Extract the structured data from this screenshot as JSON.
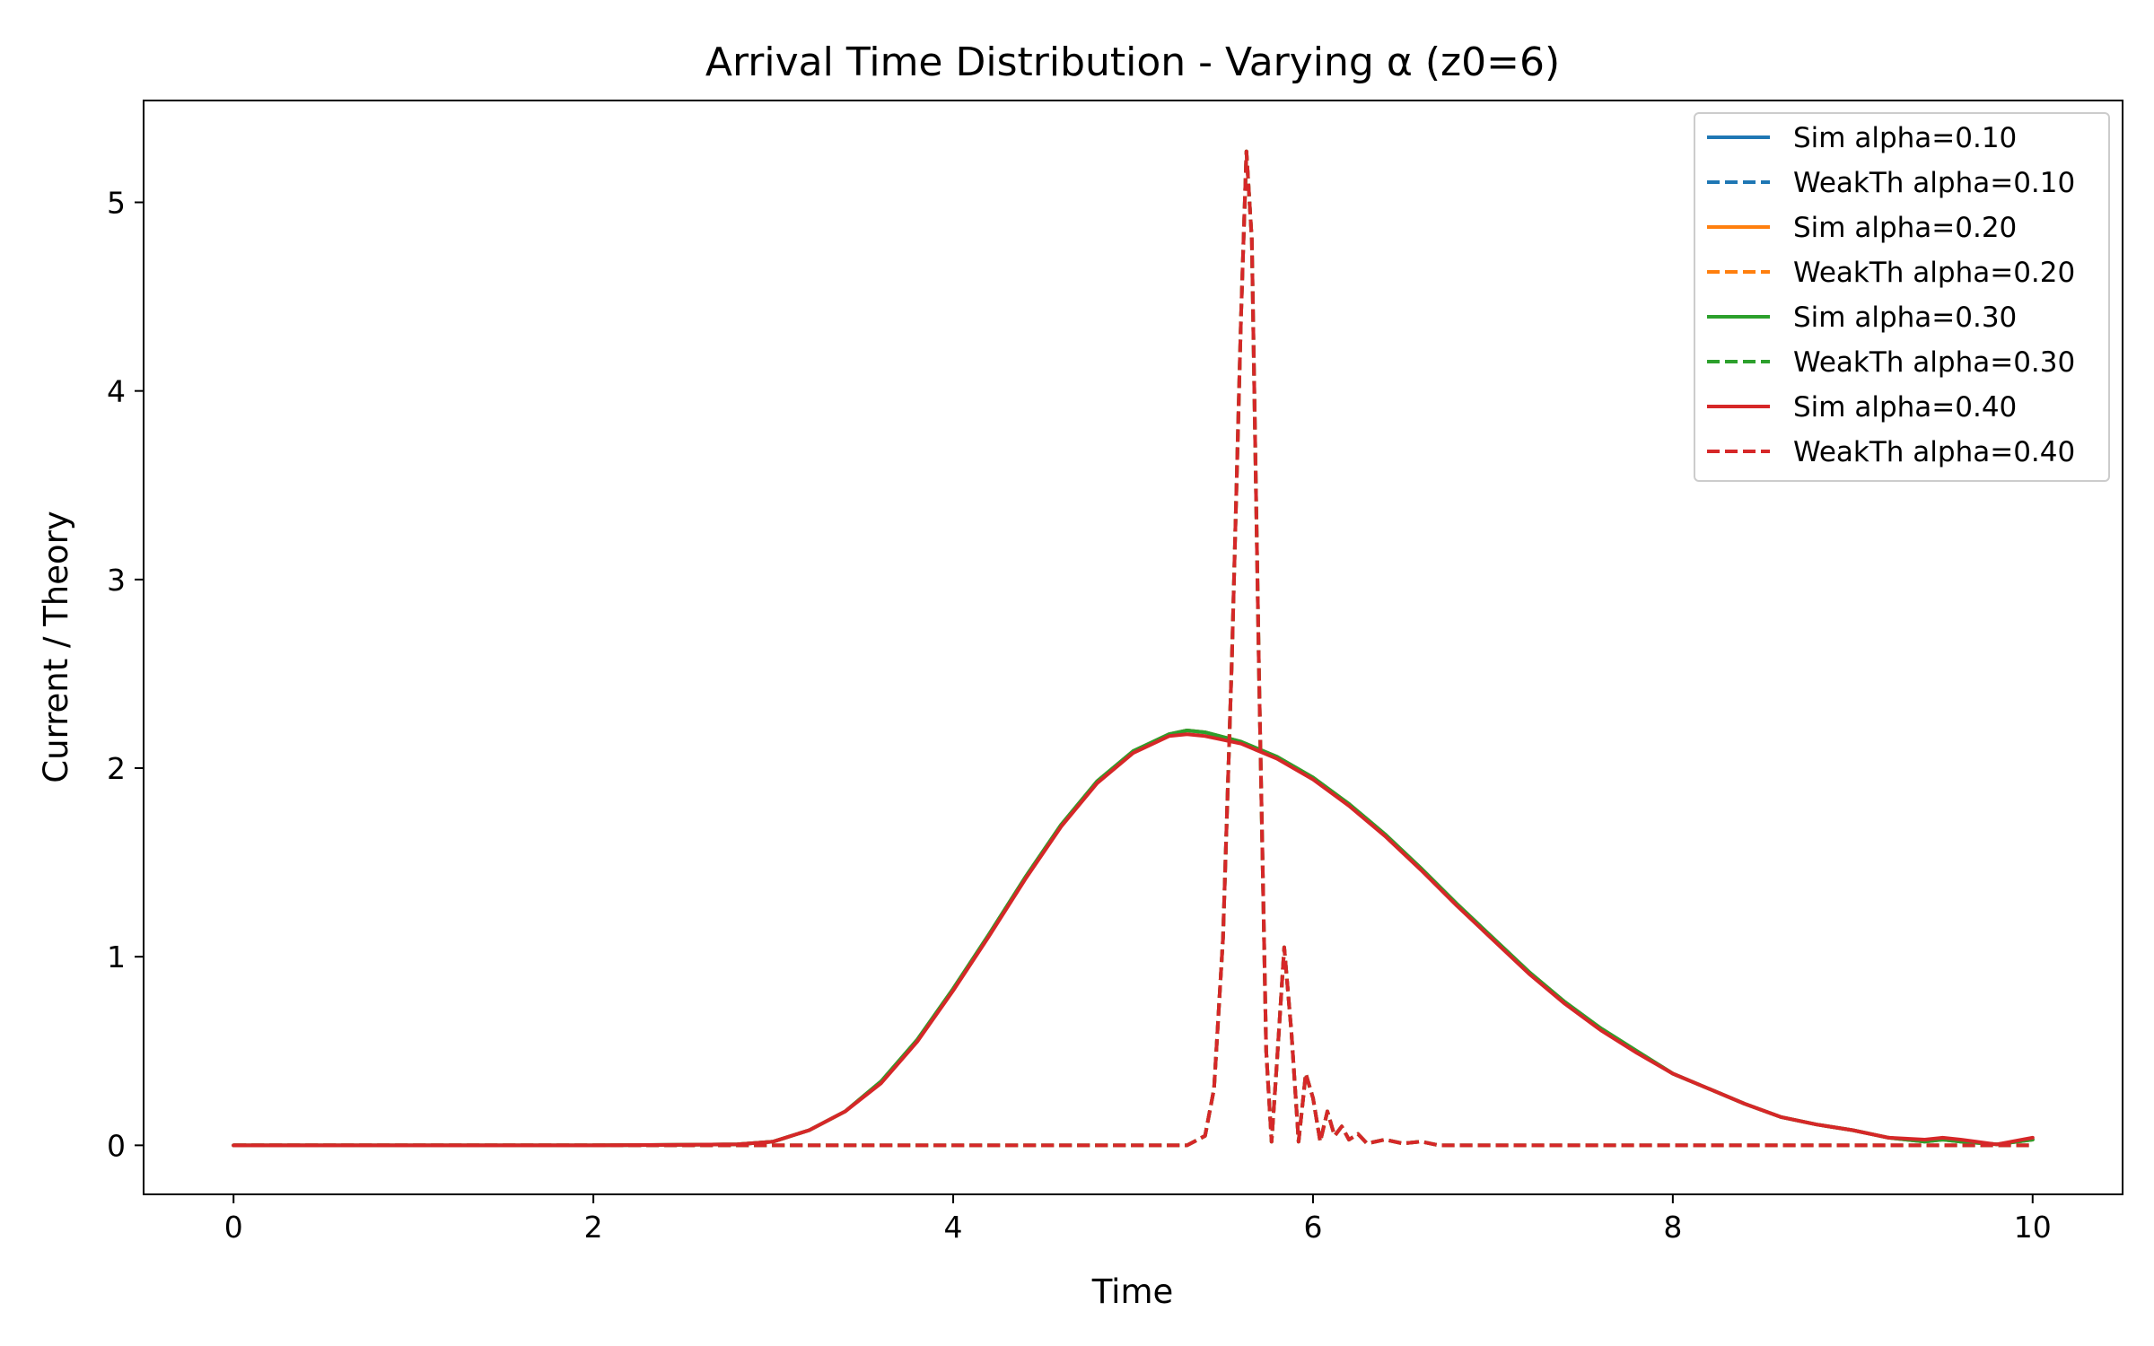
{
  "chart_data": {
    "type": "line",
    "title": "Arrival Time Distribution - Varying α (z0=6)",
    "xlabel": "Time",
    "ylabel": "Current / Theory",
    "xlim": [
      -0.5,
      10.5
    ],
    "ylim": [
      -0.26,
      5.54
    ],
    "xticks": [
      0,
      2,
      4,
      6,
      8,
      10
    ],
    "yticks": [
      0,
      1,
      2,
      3,
      4,
      5
    ],
    "grid": false,
    "legend_position": "top-right",
    "colors": {
      "alpha_0.10": "#1f77b4",
      "alpha_0.20": "#ff7f0e",
      "alpha_0.30": "#2ca02c",
      "alpha_0.40": "#d62728"
    },
    "series": [
      {
        "name": "Sim alpha=0.10",
        "style": "solid",
        "color": "#1f77b4",
        "x": [
          0,
          1,
          2,
          2.8,
          3.0,
          3.2,
          3.4,
          3.6,
          3.8,
          4.0,
          4.2,
          4.4,
          4.6,
          4.8,
          5.0,
          5.2,
          5.3,
          5.4,
          5.6,
          5.8,
          6.0,
          6.2,
          6.4,
          6.6,
          6.8,
          7.0,
          7.2,
          7.4,
          7.6,
          7.8,
          8.0,
          8.2,
          8.4,
          8.6,
          8.8,
          9.0,
          9.2,
          9.4,
          9.5,
          9.6,
          9.8,
          10.0
        ],
        "y": [
          0,
          0,
          0,
          0.005,
          0.02,
          0.08,
          0.18,
          0.34,
          0.56,
          0.83,
          1.12,
          1.42,
          1.7,
          1.93,
          2.09,
          2.18,
          2.2,
          2.19,
          2.14,
          2.06,
          1.95,
          1.81,
          1.65,
          1.47,
          1.28,
          1.1,
          0.92,
          0.76,
          0.62,
          0.5,
          0.38,
          0.3,
          0.22,
          0.15,
          0.11,
          0.08,
          0.04,
          0.02,
          0.03,
          0.02,
          0.005,
          0.03
        ]
      },
      {
        "name": "WeakTh alpha=0.10",
        "style": "dashed",
        "color": "#1f77b4",
        "x": [
          0,
          1,
          2,
          3,
          4,
          5,
          5.3,
          5.4,
          5.45,
          5.5,
          5.55,
          5.6,
          5.63,
          5.66,
          5.7,
          5.74,
          5.77,
          5.8,
          5.84,
          5.88,
          5.92,
          5.96,
          6.0,
          6.04,
          6.08,
          6.12,
          6.16,
          6.2,
          6.25,
          6.3,
          6.4,
          6.5,
          6.6,
          6.7,
          7,
          8,
          9,
          10
        ],
        "y": [
          0,
          0,
          0,
          0,
          0,
          0,
          0,
          0.05,
          0.3,
          1.1,
          2.6,
          4.4,
          5.27,
          4.8,
          2.5,
          0.5,
          0.02,
          0.45,
          1.05,
          0.6,
          0.02,
          0.38,
          0.25,
          0.02,
          0.18,
          0.05,
          0.1,
          0.03,
          0.06,
          0.01,
          0.03,
          0.01,
          0.02,
          0,
          0,
          0,
          0,
          0
        ]
      },
      {
        "name": "Sim alpha=0.20",
        "style": "solid",
        "color": "#ff7f0e",
        "x": [
          0,
          1,
          2,
          2.8,
          3.0,
          3.2,
          3.4,
          3.6,
          3.8,
          4.0,
          4.2,
          4.4,
          4.6,
          4.8,
          5.0,
          5.2,
          5.3,
          5.4,
          5.6,
          5.8,
          6.0,
          6.2,
          6.4,
          6.6,
          6.8,
          7.0,
          7.2,
          7.4,
          7.6,
          7.8,
          8.0,
          8.2,
          8.4,
          8.6,
          8.8,
          9.0,
          9.2,
          9.4,
          9.5,
          9.6,
          9.8,
          10.0
        ],
        "y": [
          0,
          0,
          0,
          0.005,
          0.02,
          0.08,
          0.18,
          0.34,
          0.56,
          0.83,
          1.12,
          1.42,
          1.7,
          1.93,
          2.09,
          2.18,
          2.2,
          2.19,
          2.14,
          2.06,
          1.95,
          1.81,
          1.65,
          1.47,
          1.28,
          1.1,
          0.92,
          0.76,
          0.62,
          0.5,
          0.38,
          0.3,
          0.22,
          0.15,
          0.11,
          0.08,
          0.04,
          0.02,
          0.03,
          0.02,
          0.005,
          0.03
        ]
      },
      {
        "name": "WeakTh alpha=0.20",
        "style": "dashed",
        "color": "#ff7f0e",
        "x": [
          0,
          1,
          2,
          3,
          4,
          5,
          5.3,
          5.4,
          5.45,
          5.5,
          5.55,
          5.6,
          5.63,
          5.66,
          5.7,
          5.74,
          5.77,
          5.8,
          5.84,
          5.88,
          5.92,
          5.96,
          6.0,
          6.04,
          6.08,
          6.12,
          6.16,
          6.2,
          6.25,
          6.3,
          6.4,
          6.5,
          6.6,
          6.7,
          7,
          8,
          9,
          10
        ],
        "y": [
          0,
          0,
          0,
          0,
          0,
          0,
          0,
          0.05,
          0.3,
          1.1,
          2.6,
          4.4,
          5.27,
          4.8,
          2.5,
          0.5,
          0.02,
          0.45,
          1.05,
          0.6,
          0.02,
          0.38,
          0.25,
          0.02,
          0.18,
          0.05,
          0.1,
          0.03,
          0.06,
          0.01,
          0.03,
          0.01,
          0.02,
          0,
          0,
          0,
          0,
          0
        ]
      },
      {
        "name": "Sim alpha=0.30",
        "style": "solid",
        "color": "#2ca02c",
        "x": [
          0,
          1,
          2,
          2.8,
          3.0,
          3.2,
          3.4,
          3.6,
          3.8,
          4.0,
          4.2,
          4.4,
          4.6,
          4.8,
          5.0,
          5.2,
          5.3,
          5.4,
          5.6,
          5.8,
          6.0,
          6.2,
          6.4,
          6.6,
          6.8,
          7.0,
          7.2,
          7.4,
          7.6,
          7.8,
          8.0,
          8.2,
          8.4,
          8.6,
          8.8,
          9.0,
          9.2,
          9.4,
          9.5,
          9.6,
          9.8,
          10.0
        ],
        "y": [
          0,
          0,
          0,
          0.005,
          0.02,
          0.08,
          0.18,
          0.34,
          0.56,
          0.83,
          1.12,
          1.42,
          1.7,
          1.93,
          2.09,
          2.18,
          2.2,
          2.19,
          2.14,
          2.06,
          1.95,
          1.81,
          1.65,
          1.47,
          1.28,
          1.1,
          0.92,
          0.76,
          0.62,
          0.5,
          0.38,
          0.3,
          0.22,
          0.15,
          0.11,
          0.08,
          0.04,
          0.02,
          0.03,
          0.02,
          0.005,
          0.03
        ]
      },
      {
        "name": "WeakTh alpha=0.30",
        "style": "dashed",
        "color": "#2ca02c",
        "x": [
          0,
          1,
          2,
          3,
          4,
          5,
          5.3,
          5.4,
          5.45,
          5.5,
          5.55,
          5.6,
          5.63,
          5.66,
          5.7,
          5.74,
          5.77,
          5.8,
          5.84,
          5.88,
          5.92,
          5.96,
          6.0,
          6.04,
          6.08,
          6.12,
          6.16,
          6.2,
          6.25,
          6.3,
          6.4,
          6.5,
          6.6,
          6.7,
          7,
          8,
          9,
          10
        ],
        "y": [
          0,
          0,
          0,
          0,
          0,
          0,
          0,
          0.05,
          0.3,
          1.1,
          2.6,
          4.4,
          5.27,
          4.8,
          2.5,
          0.5,
          0.02,
          0.45,
          1.05,
          0.6,
          0.02,
          0.38,
          0.25,
          0.02,
          0.18,
          0.05,
          0.1,
          0.03,
          0.06,
          0.01,
          0.03,
          0.01,
          0.02,
          0,
          0,
          0,
          0,
          0
        ]
      },
      {
        "name": "Sim alpha=0.40",
        "style": "solid",
        "color": "#d62728",
        "x": [
          0,
          1,
          2,
          2.8,
          3.0,
          3.2,
          3.4,
          3.6,
          3.8,
          4.0,
          4.2,
          4.4,
          4.6,
          4.8,
          5.0,
          5.2,
          5.3,
          5.4,
          5.6,
          5.8,
          6.0,
          6.2,
          6.4,
          6.6,
          6.8,
          7.0,
          7.2,
          7.4,
          7.6,
          7.8,
          8.0,
          8.2,
          8.4,
          8.6,
          8.8,
          9.0,
          9.2,
          9.4,
          9.5,
          9.6,
          9.8,
          10.0
        ],
        "y": [
          0,
          0,
          0,
          0.005,
          0.02,
          0.08,
          0.18,
          0.33,
          0.55,
          0.82,
          1.11,
          1.41,
          1.69,
          1.92,
          2.08,
          2.17,
          2.18,
          2.17,
          2.13,
          2.05,
          1.94,
          1.8,
          1.64,
          1.46,
          1.27,
          1.09,
          0.91,
          0.75,
          0.61,
          0.49,
          0.38,
          0.3,
          0.22,
          0.15,
          0.11,
          0.08,
          0.04,
          0.03,
          0.04,
          0.03,
          0.005,
          0.04
        ]
      },
      {
        "name": "WeakTh alpha=0.40",
        "style": "dashed",
        "color": "#d62728",
        "x": [
          0,
          1,
          2,
          3,
          4,
          5,
          5.3,
          5.4,
          5.45,
          5.5,
          5.55,
          5.6,
          5.63,
          5.66,
          5.7,
          5.74,
          5.77,
          5.8,
          5.84,
          5.88,
          5.92,
          5.96,
          6.0,
          6.04,
          6.08,
          6.12,
          6.16,
          6.2,
          6.25,
          6.3,
          6.4,
          6.5,
          6.6,
          6.7,
          7,
          8,
          9,
          10
        ],
        "y": [
          0,
          0,
          0,
          0,
          0,
          0,
          0,
          0.05,
          0.3,
          1.1,
          2.6,
          4.4,
          5.27,
          4.8,
          2.5,
          0.5,
          0.02,
          0.45,
          1.05,
          0.6,
          0.02,
          0.38,
          0.25,
          0.02,
          0.18,
          0.05,
          0.1,
          0.03,
          0.06,
          0.01,
          0.03,
          0.01,
          0.02,
          0,
          0,
          0,
          0,
          0
        ]
      }
    ]
  }
}
